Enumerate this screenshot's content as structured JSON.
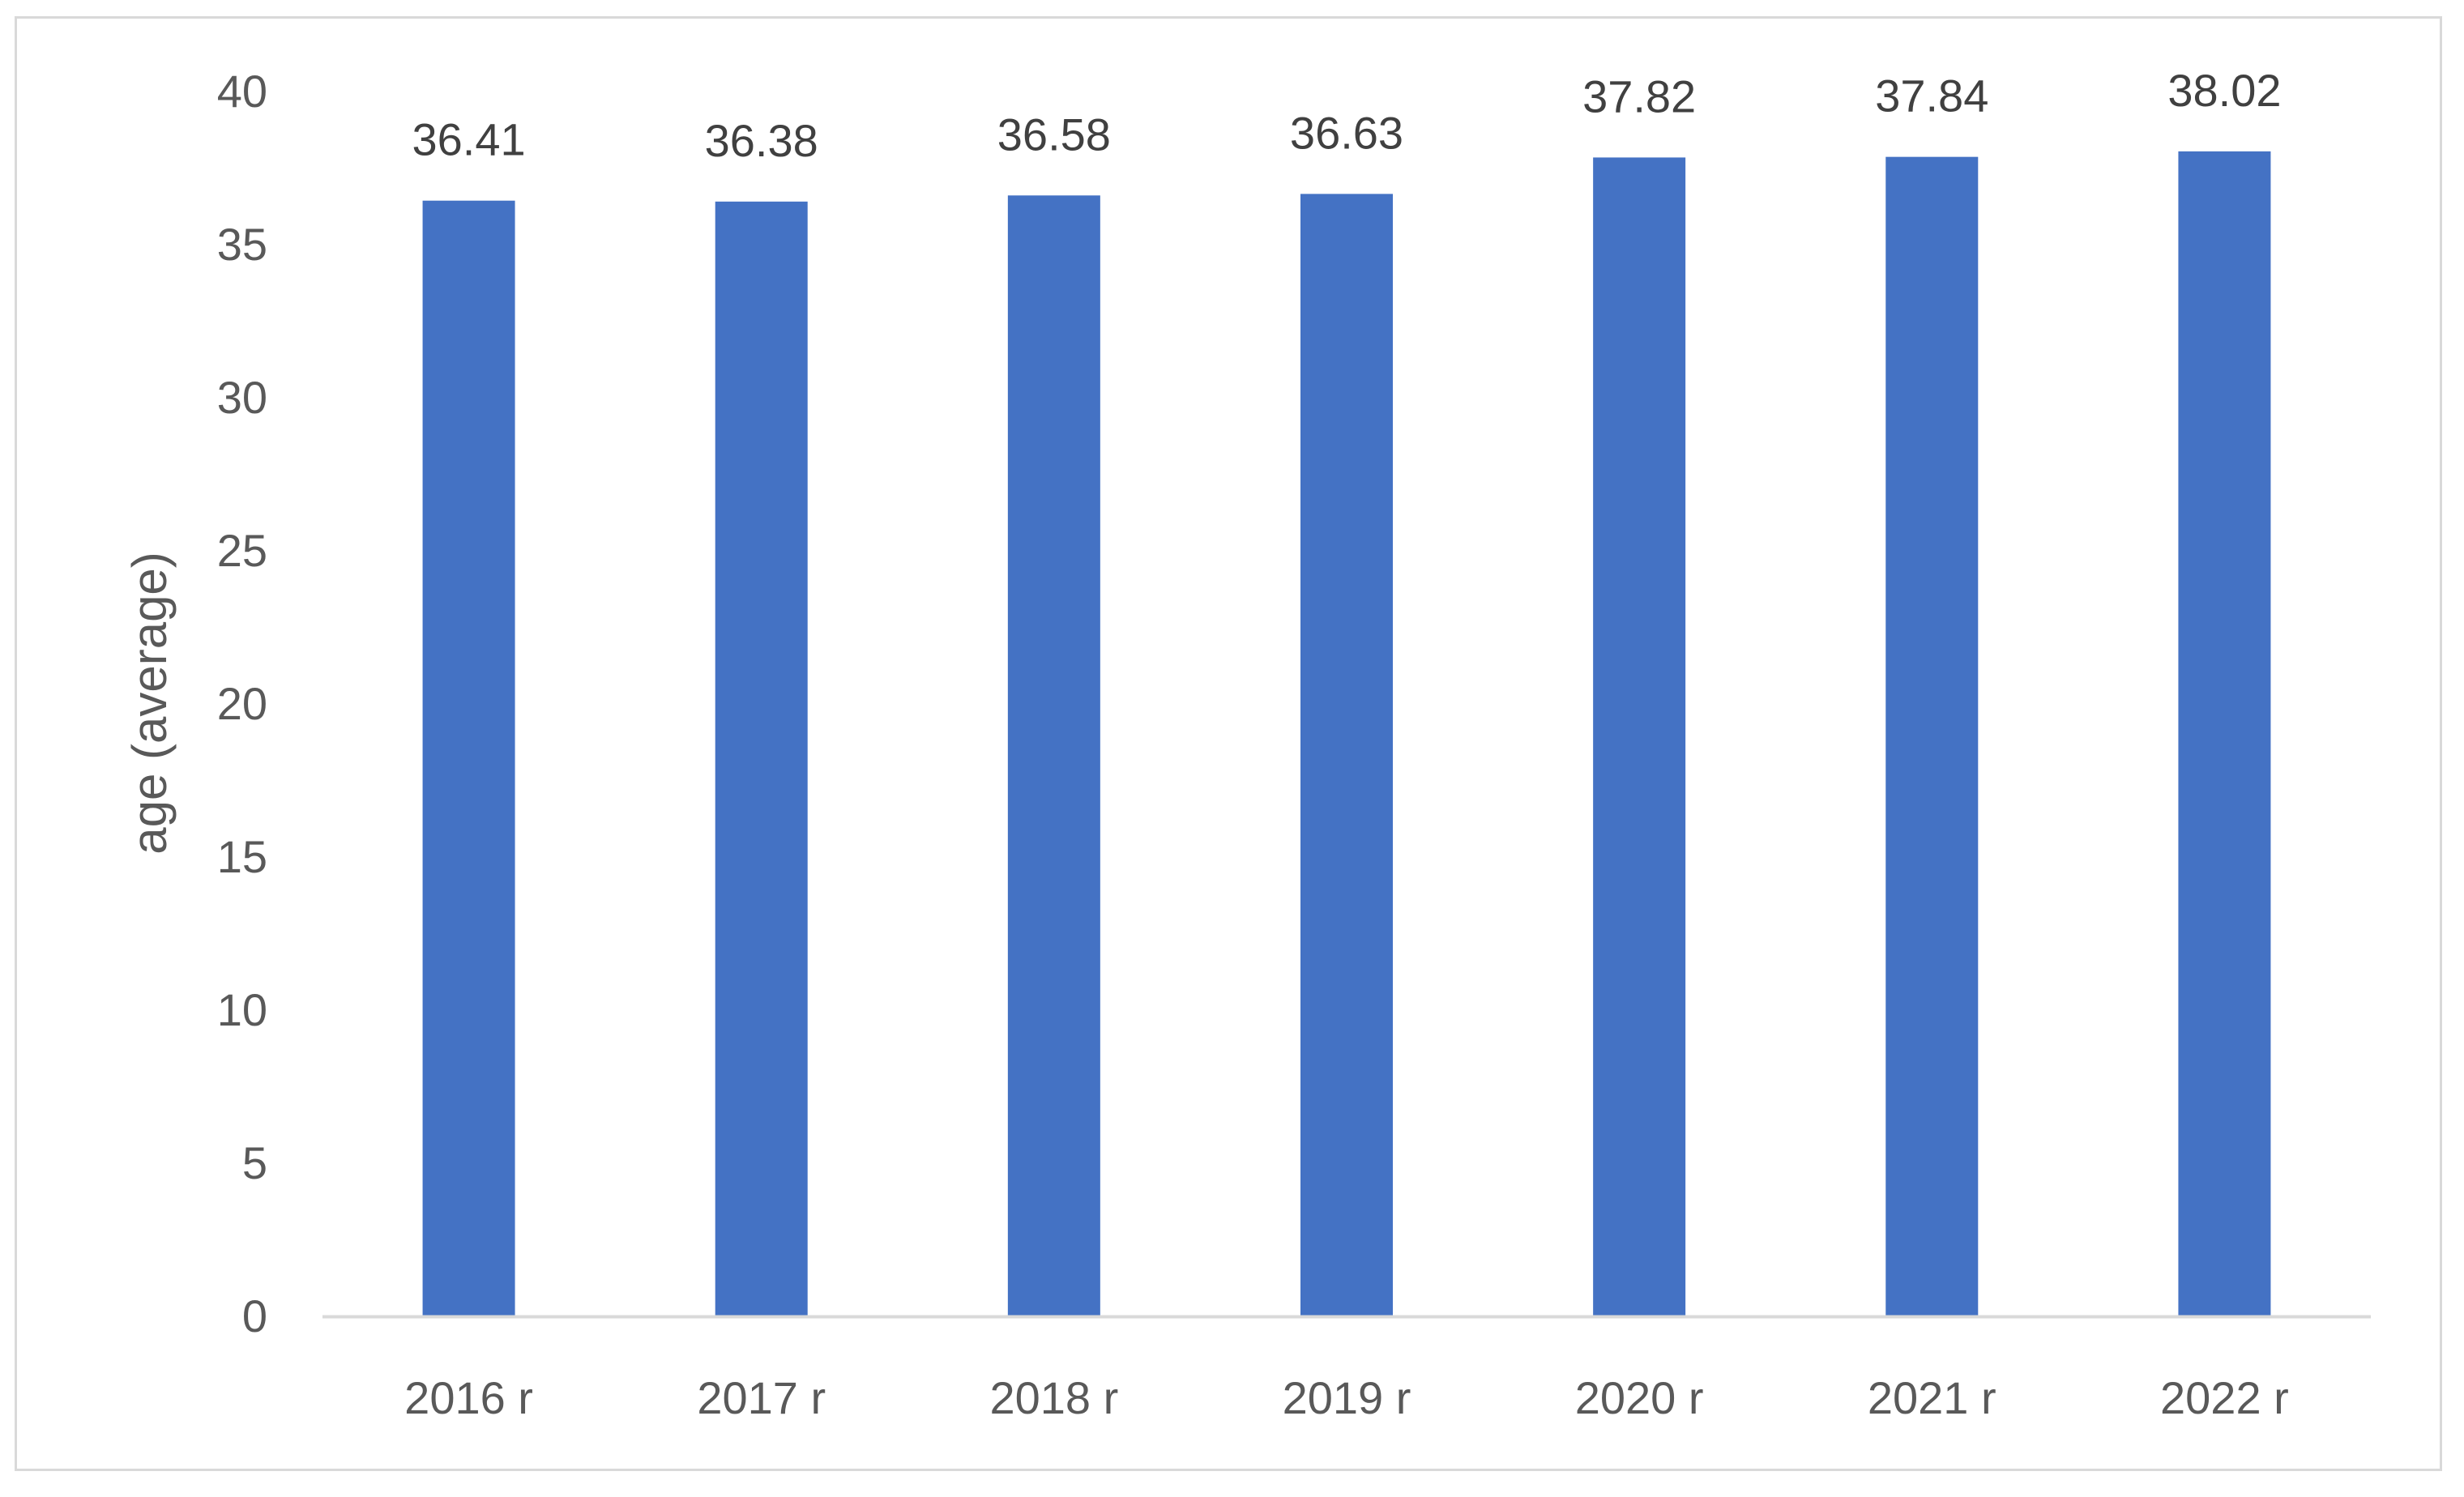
{
  "chart_data": {
    "type": "bar",
    "title": "",
    "xlabel": "",
    "ylabel": "age (average)",
    "categories": [
      "2016 r",
      "2017 r",
      "2018 r",
      "2019 r",
      "2020 r",
      "2021 r",
      "2022 r"
    ],
    "values": [
      36.41,
      36.38,
      36.58,
      36.63,
      37.82,
      37.84,
      38.02
    ],
    "data_labels": [
      "36.41",
      "36.38",
      "36.58",
      "36.63",
      "37.82",
      "37.84",
      "38.02"
    ],
    "ylim": [
      0,
      40
    ],
    "yticks": [
      0,
      5,
      10,
      15,
      20,
      25,
      30,
      35,
      40
    ],
    "ytick_labels": [
      "0",
      "5",
      "10",
      "15",
      "20",
      "25",
      "30",
      "35",
      "40"
    ],
    "grid": false,
    "legend": "none",
    "colors": {
      "bar": "#4472c4",
      "axis": "#d9d9d9",
      "frame": "#d9d9d9"
    }
  }
}
